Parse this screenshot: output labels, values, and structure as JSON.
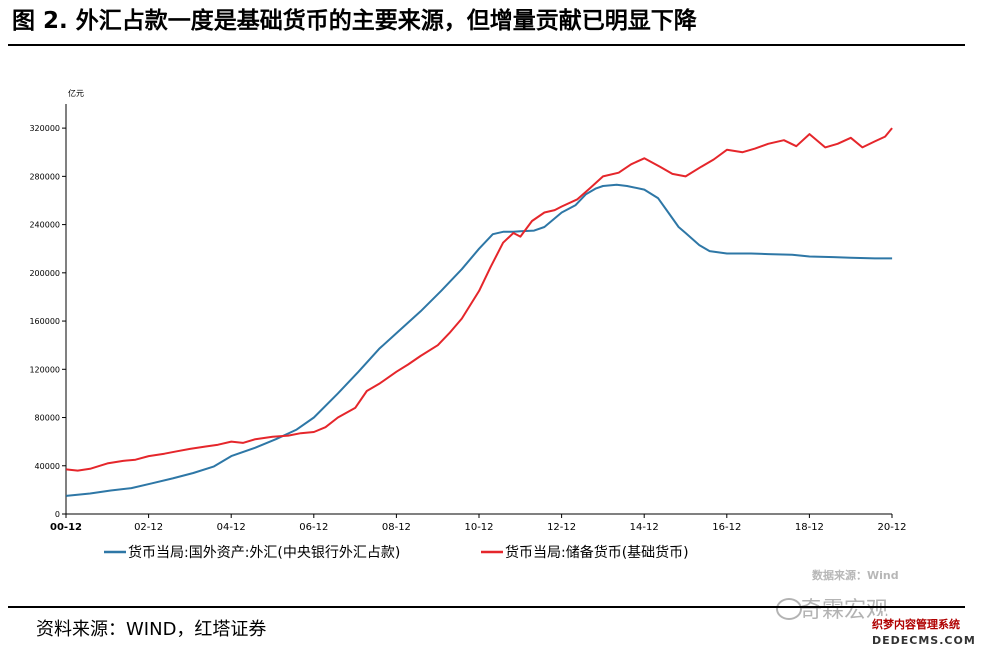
{
  "figure": {
    "title": "图 2. 外汇占款一度是基础货币的主要来源，但增量贡献已明显下降",
    "source_note": "资料来源：WIND，红塔证券",
    "watermark_data_source": "数据来源：Wind",
    "watermark_account": "奇霖宏观",
    "badge_line1": "织梦内容管理系统",
    "badge_line2": "DEDECMS.COM"
  },
  "chart_data": {
    "type": "line",
    "ylabel": "亿元",
    "ylim": [
      0,
      340000
    ],
    "yticks": [
      0,
      40000,
      80000,
      120000,
      160000,
      200000,
      240000,
      280000,
      320000
    ],
    "ytick_labels": [
      "0",
      "40000",
      "80000",
      "120000",
      "160000",
      "200000",
      "240000",
      "280000",
      "320000"
    ],
    "xlim": [
      2000.917,
      2020.917
    ],
    "xticks": [
      2000.917,
      2002.917,
      2004.917,
      2006.917,
      2008.917,
      2010.917,
      2012.917,
      2014.917,
      2016.917,
      2018.917,
      2020.917
    ],
    "xtick_labels": [
      "00-12",
      "02-12",
      "04-12",
      "06-12",
      "08-12",
      "10-12",
      "12-12",
      "14-12",
      "16-12",
      "18-12",
      "20-12"
    ],
    "grid": false,
    "legend_position": "bottom",
    "series": [
      {
        "name": "货币当局:国外资产:外汇(中央银行外汇占款)",
        "color": "#2e77a6",
        "x": [
          2000.92,
          2001.5,
          2002.0,
          2002.5,
          2003.0,
          2003.5,
          2004.0,
          2004.5,
          2004.92,
          2005.5,
          2006.0,
          2006.5,
          2006.92,
          2007.5,
          2008.0,
          2008.5,
          2008.92,
          2009.5,
          2010.0,
          2010.5,
          2010.92,
          2011.25,
          2011.5,
          2011.75,
          2011.92,
          2012.25,
          2012.5,
          2012.92,
          2013.25,
          2013.5,
          2013.75,
          2013.92,
          2014.25,
          2014.5,
          2014.92,
          2015.25,
          2015.5,
          2015.75,
          2015.92,
          2016.25,
          2016.5,
          2016.92,
          2017.5,
          2017.92,
          2018.5,
          2018.92,
          2019.5,
          2019.92,
          2020.5,
          2020.92
        ],
        "values": [
          15000,
          17000,
          19500,
          21500,
          25500,
          29500,
          34000,
          39500,
          48000,
          55000,
          62000,
          70000,
          80000,
          100000,
          118000,
          137000,
          150000,
          168000,
          185000,
          203000,
          220000,
          232000,
          234000,
          234000,
          234500,
          235000,
          238000,
          250000,
          256000,
          265000,
          270000,
          272000,
          273000,
          272000,
          269000,
          262000,
          250000,
          238000,
          233000,
          223000,
          218000,
          216000,
          216000,
          215500,
          215000,
          213500,
          213000,
          212500,
          212000,
          212000
        ]
      },
      {
        "name": "货币当局:储备货币(基础货币)",
        "color": "#e5262b",
        "x": [
          2000.92,
          2001.2,
          2001.5,
          2001.92,
          2002.3,
          2002.6,
          2002.92,
          2003.3,
          2003.6,
          2003.92,
          2004.3,
          2004.6,
          2004.92,
          2005.2,
          2005.5,
          2005.92,
          2006.3,
          2006.6,
          2006.92,
          2007.2,
          2007.5,
          2007.92,
          2008.2,
          2008.5,
          2008.92,
          2009.2,
          2009.5,
          2009.92,
          2010.2,
          2010.5,
          2010.92,
          2011.2,
          2011.5,
          2011.75,
          2011.92,
          2012.2,
          2012.5,
          2012.75,
          2012.92,
          2013.3,
          2013.6,
          2013.92,
          2014.3,
          2014.6,
          2014.92,
          2015.3,
          2015.6,
          2015.92,
          2016.3,
          2016.6,
          2016.92,
          2017.3,
          2017.6,
          2017.92,
          2018.3,
          2018.6,
          2018.92,
          2019.3,
          2019.6,
          2019.92,
          2020.2,
          2020.5,
          2020.75,
          2020.92
        ],
        "values": [
          37000,
          36000,
          37500,
          42000,
          44000,
          45000,
          48000,
          50000,
          52000,
          54000,
          56000,
          57500,
          60000,
          59000,
          62000,
          64000,
          65000,
          67000,
          68000,
          72000,
          80000,
          88000,
          102000,
          108000,
          118000,
          124000,
          131000,
          140000,
          150000,
          162000,
          185000,
          205000,
          225000,
          233000,
          230000,
          243000,
          250000,
          252000,
          255000,
          261000,
          270000,
          280000,
          283000,
          290000,
          295000,
          288000,
          282000,
          280000,
          288000,
          294000,
          302000,
          300000,
          303000,
          307000,
          310000,
          305000,
          315000,
          304000,
          307000,
          312000,
          304000,
          309000,
          313000,
          320000
        ]
      }
    ]
  }
}
